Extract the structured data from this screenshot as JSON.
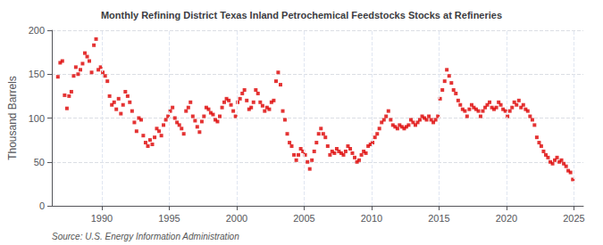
{
  "chart_data": {
    "type": "scatter",
    "title": "Monthly Refining District Texas Inland Petrochemical Feedstocks Stocks at Refineries",
    "ylabel": "Thousand Barrels",
    "annotation": "Source: U.S. Energy Information Administration",
    "color": "#DD0000",
    "marker": "square",
    "grid": true,
    "xlim": [
      1986.3,
      2025.7
    ],
    "xticks": [
      1990,
      1995,
      2000,
      2005,
      2010,
      2015,
      2020,
      2025
    ],
    "ylim": [
      0,
      200
    ],
    "yticks": [
      0,
      50,
      100,
      150,
      200
    ],
    "x": [
      1986.75,
      1986.92,
      1987.08,
      1987.25,
      1987.42,
      1987.58,
      1987.75,
      1987.92,
      1988.08,
      1988.25,
      1988.42,
      1988.58,
      1988.75,
      1988.92,
      1989.08,
      1989.25,
      1989.42,
      1989.58,
      1989.75,
      1989.92,
      1990.08,
      1990.25,
      1990.42,
      1990.58,
      1990.75,
      1990.92,
      1991.08,
      1991.25,
      1991.42,
      1991.58,
      1991.75,
      1991.92,
      1992.08,
      1992.25,
      1992.42,
      1992.58,
      1992.75,
      1992.92,
      1993.08,
      1993.25,
      1993.42,
      1993.58,
      1993.75,
      1993.92,
      1994.08,
      1994.25,
      1994.42,
      1994.58,
      1994.75,
      1994.92,
      1995.08,
      1995.25,
      1995.42,
      1995.58,
      1995.75,
      1995.92,
      1996.08,
      1996.25,
      1996.42,
      1996.58,
      1996.75,
      1996.92,
      1997.08,
      1997.25,
      1997.42,
      1997.58,
      1997.75,
      1997.92,
      1998.08,
      1998.25,
      1998.42,
      1998.58,
      1998.75,
      1998.92,
      1999.08,
      1999.25,
      1999.42,
      1999.58,
      1999.75,
      1999.92,
      2000.08,
      2000.25,
      2000.42,
      2000.58,
      2000.75,
      2000.92,
      2001.08,
      2001.25,
      2001.42,
      2001.58,
      2001.75,
      2001.92,
      2002.08,
      2002.25,
      2002.42,
      2002.58,
      2002.75,
      2002.92,
      2003.08,
      2003.25,
      2003.42,
      2003.58,
      2003.75,
      2003.92,
      2004.08,
      2004.25,
      2004.42,
      2004.58,
      2004.75,
      2004.92,
      2005.08,
      2005.25,
      2005.42,
      2005.58,
      2005.75,
      2005.92,
      2006.08,
      2006.25,
      2006.42,
      2006.58,
      2006.75,
      2006.92,
      2007.08,
      2007.25,
      2007.42,
      2007.58,
      2007.75,
      2007.92,
      2008.08,
      2008.25,
      2008.42,
      2008.58,
      2008.75,
      2008.92,
      2009.08,
      2009.25,
      2009.42,
      2009.58,
      2009.75,
      2009.92,
      2010.08,
      2010.25,
      2010.42,
      2010.58,
      2010.75,
      2010.92,
      2011.08,
      2011.25,
      2011.42,
      2011.58,
      2011.75,
      2011.92,
      2012.08,
      2012.25,
      2012.42,
      2012.58,
      2012.75,
      2012.92,
      2013.08,
      2013.25,
      2013.42,
      2013.58,
      2013.75,
      2013.92,
      2014.08,
      2014.25,
      2014.42,
      2014.58,
      2014.75,
      2014.92,
      2015.08,
      2015.25,
      2015.42,
      2015.58,
      2015.75,
      2015.92,
      2016.08,
      2016.25,
      2016.42,
      2016.58,
      2016.75,
      2016.92,
      2017.08,
      2017.25,
      2017.42,
      2017.58,
      2017.75,
      2017.92,
      2018.08,
      2018.25,
      2018.42,
      2018.58,
      2018.75,
      2018.92,
      2019.08,
      2019.25,
      2019.42,
      2019.58,
      2019.75,
      2019.92,
      2020.08,
      2020.25,
      2020.42,
      2020.58,
      2020.75,
      2020.92,
      2021.08,
      2021.25,
      2021.42,
      2021.58,
      2021.75,
      2021.92,
      2022.08,
      2022.25,
      2022.42,
      2022.58,
      2022.75,
      2022.92,
      2023.08,
      2023.25,
      2023.42,
      2023.58,
      2023.75,
      2023.92,
      2024.08,
      2024.25,
      2024.42,
      2024.58,
      2024.75,
      2024.92
    ],
    "values": [
      147,
      163,
      165,
      126,
      111,
      125,
      130,
      148,
      158,
      150,
      155,
      162,
      174,
      170,
      165,
      152,
      183,
      190,
      155,
      158,
      152,
      148,
      142,
      125,
      115,
      118,
      110,
      122,
      105,
      115,
      130,
      125,
      118,
      108,
      95,
      85,
      100,
      98,
      80,
      72,
      68,
      75,
      70,
      78,
      88,
      85,
      80,
      92,
      98,
      102,
      108,
      112,
      100,
      95,
      92,
      88,
      82,
      108,
      112,
      118,
      102,
      97,
      90,
      84,
      96,
      102,
      112,
      110,
      106,
      104,
      98,
      96,
      102,
      112,
      118,
      122,
      120,
      115,
      108,
      102,
      118,
      122,
      128,
      132,
      120,
      110,
      112,
      118,
      132,
      128,
      118,
      114,
      108,
      112,
      110,
      118,
      120,
      142,
      152,
      138,
      108,
      98,
      82,
      72,
      68,
      58,
      52,
      58,
      65,
      62,
      58,
      50,
      42,
      52,
      62,
      72,
      82,
      88,
      82,
      78,
      68,
      58,
      62,
      60,
      65,
      62,
      60,
      58,
      62,
      68,
      65,
      60,
      55,
      50,
      52,
      58,
      62,
      60,
      68,
      70,
      72,
      78,
      82,
      88,
      95,
      98,
      102,
      108,
      98,
      92,
      90,
      88,
      92,
      90,
      88,
      90,
      92,
      98,
      95,
      92,
      95,
      98,
      102,
      100,
      98,
      102,
      98,
      95,
      98,
      102,
      122,
      132,
      142,
      155,
      148,
      140,
      132,
      128,
      120,
      115,
      110,
      108,
      102,
      110,
      115,
      112,
      110,
      108,
      102,
      108,
      112,
      115,
      118,
      112,
      110,
      112,
      118,
      115,
      110,
      108,
      102,
      108,
      112,
      118,
      115,
      120,
      112,
      115,
      110,
      108,
      102,
      98,
      92,
      78,
      72,
      68,
      62,
      58,
      55,
      50,
      48,
      52,
      55,
      50,
      52,
      48,
      45,
      40,
      38,
      30
    ]
  }
}
